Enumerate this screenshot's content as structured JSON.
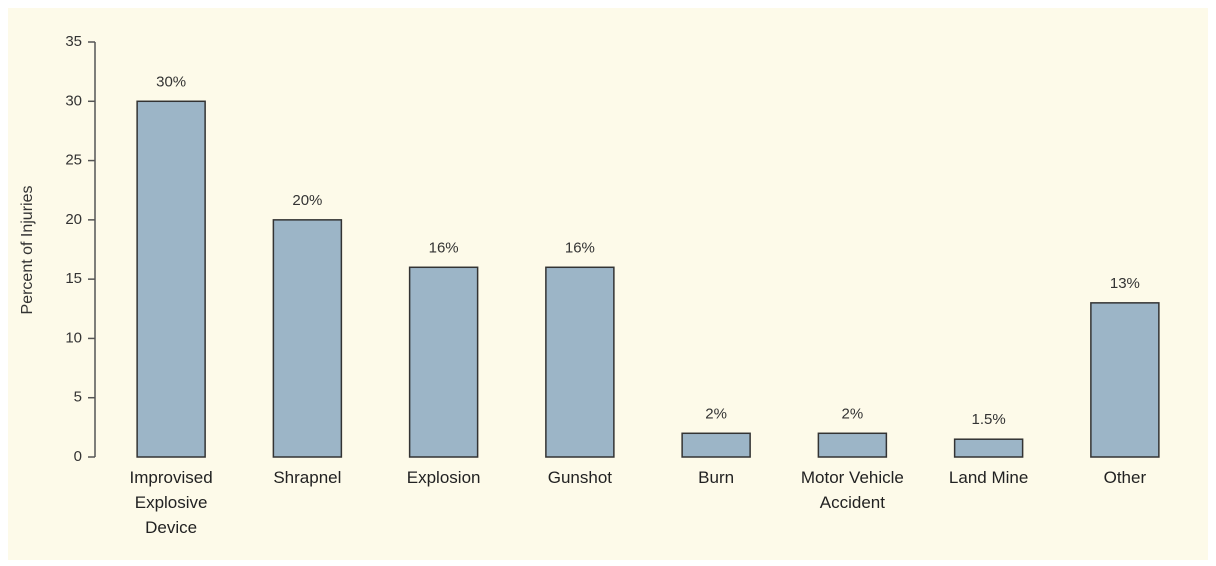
{
  "chart_data": {
    "type": "bar",
    "y_label": "Percent of Injuries",
    "categories": [
      "Improvised Explosive Device",
      "Shrapnel",
      "Explosion",
      "Gunshot",
      "Burn",
      "Motor Vehicle Accident",
      "Land Mine",
      "Other"
    ],
    "values": [
      30,
      20,
      16,
      16,
      2,
      2,
      1.5,
      13
    ],
    "value_labels": [
      "30%",
      "20%",
      "16%",
      "16%",
      "2%",
      "2%",
      "1.5%",
      "13%"
    ],
    "color": "#9cb5c7",
    "ylim": [
      0,
      35
    ],
    "yticks": [
      0,
      5,
      10,
      15,
      20,
      25,
      30,
      35
    ],
    "grid": false
  }
}
